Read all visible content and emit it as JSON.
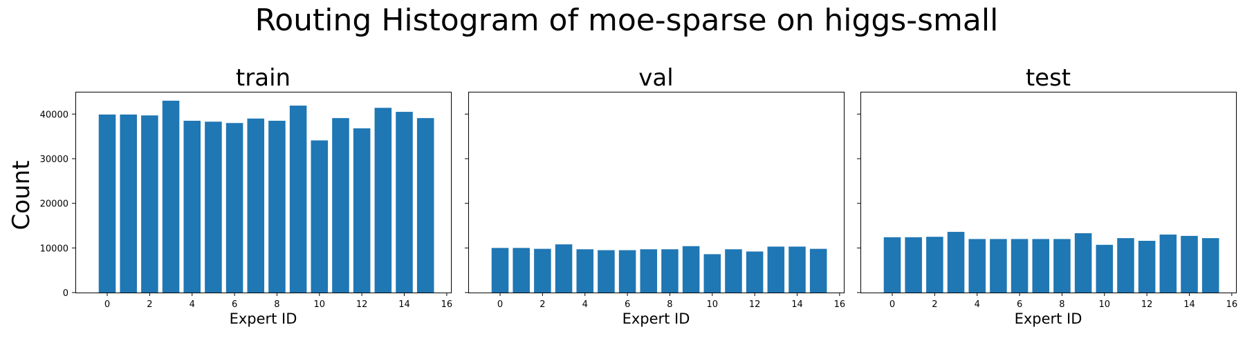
{
  "figure": {
    "title": "Routing Histogram of moe-sparse on higgs-small",
    "ylabel": "Count",
    "bar_color": "#1f77b4"
  },
  "chart_data": [
    {
      "type": "bar",
      "title": "train",
      "xlabel": "Expert ID",
      "ylabel": "Count",
      "categories": [
        0,
        1,
        2,
        3,
        4,
        5,
        6,
        7,
        8,
        9,
        10,
        11,
        12,
        13,
        14,
        15
      ],
      "values": [
        39900,
        39900,
        39700,
        43000,
        38500,
        38300,
        38000,
        39000,
        38500,
        41900,
        34100,
        39100,
        36800,
        41400,
        40500,
        39100
      ],
      "xlim": [
        -1.5,
        16.2
      ],
      "ylim": [
        0,
        45000
      ],
      "xticks": [
        0,
        2,
        4,
        6,
        8,
        10,
        12,
        14,
        16
      ],
      "yticks": [
        0,
        10000,
        20000,
        30000,
        40000
      ],
      "yticklabels_visible": true,
      "grid": false
    },
    {
      "type": "bar",
      "title": "val",
      "xlabel": "Expert ID",
      "ylabel": "",
      "categories": [
        0,
        1,
        2,
        3,
        4,
        5,
        6,
        7,
        8,
        9,
        10,
        11,
        12,
        13,
        14,
        15
      ],
      "values": [
        10000,
        10000,
        9800,
        10800,
        9700,
        9500,
        9500,
        9700,
        9700,
        10400,
        8600,
        9700,
        9200,
        10300,
        10300,
        9800
      ],
      "xlim": [
        -1.5,
        16.2
      ],
      "ylim": [
        0,
        45000
      ],
      "xticks": [
        0,
        2,
        4,
        6,
        8,
        10,
        12,
        14,
        16
      ],
      "yticks": [
        0,
        10000,
        20000,
        30000,
        40000
      ],
      "yticklabels_visible": false,
      "grid": false
    },
    {
      "type": "bar",
      "title": "test",
      "xlabel": "Expert ID",
      "ylabel": "",
      "categories": [
        0,
        1,
        2,
        3,
        4,
        5,
        6,
        7,
        8,
        9,
        10,
        11,
        12,
        13,
        14,
        15
      ],
      "values": [
        12400,
        12400,
        12500,
        13600,
        12000,
        12000,
        12000,
        12000,
        12000,
        13300,
        10700,
        12200,
        11600,
        13000,
        12700,
        12200
      ],
      "xlim": [
        -1.5,
        16.2
      ],
      "ylim": [
        0,
        45000
      ],
      "xticks": [
        0,
        2,
        4,
        6,
        8,
        10,
        12,
        14,
        16
      ],
      "yticks": [
        0,
        10000,
        20000,
        30000,
        40000
      ],
      "yticklabels_visible": false,
      "grid": false
    }
  ]
}
